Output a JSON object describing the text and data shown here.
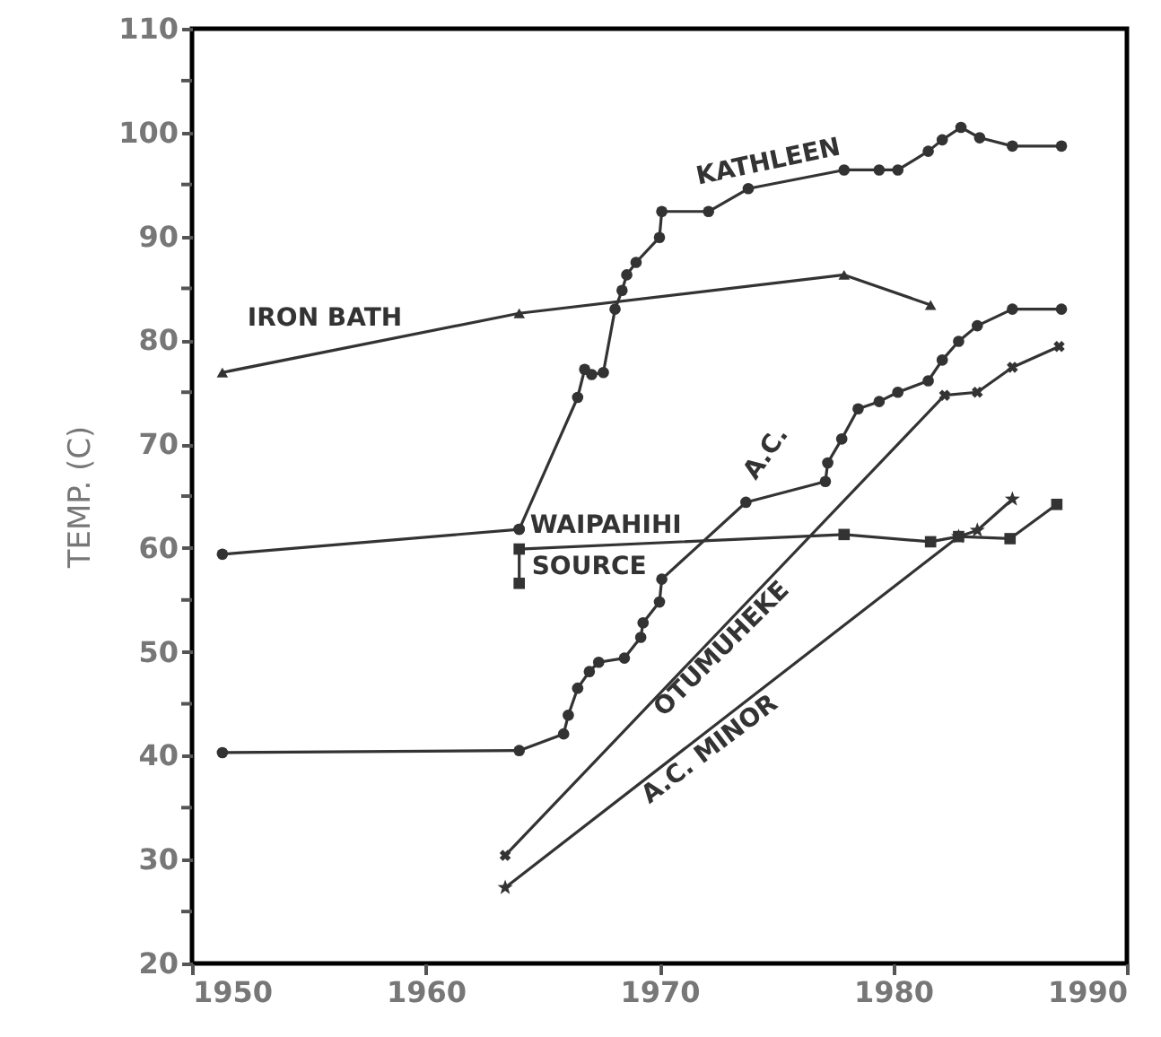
{
  "chart_data": {
    "type": "line",
    "ylabel": "TEMP. (C)",
    "xlim": [
      1950,
      1990
    ],
    "ylim": [
      20,
      110
    ],
    "xticks": [
      1950,
      1960,
      1970,
      1980,
      1990
    ],
    "yticks": [
      20,
      {
        "value": 25,
        "label": null
      },
      30,
      {
        "value": 35,
        "label": null
      },
      40,
      {
        "value": 45,
        "label": null
      },
      50,
      {
        "value": 55,
        "label": null
      },
      60,
      {
        "value": 65,
        "label": null
      },
      70,
      {
        "value": 75,
        "label": null
      },
      80,
      {
        "value": 85,
        "label": null
      },
      90,
      {
        "value": 95,
        "label": null
      },
      100,
      {
        "value": 105,
        "label": null
      },
      110
    ],
    "grid": false,
    "legend": false,
    "line_style": "solid",
    "series": [
      {
        "name": "KATHLEEN",
        "color": "#333333",
        "marker": "circle",
        "x": [
          1964.0,
          1966.5,
          1966.8,
          1967.1,
          1967.6,
          1968.1,
          1968.4,
          1968.6,
          1969.0,
          1970.0,
          1970.1,
          1972.1,
          1973.8,
          1977.9,
          1979.4,
          1980.2,
          1981.5,
          1982.1,
          1982.9,
          1983.7,
          1985.1,
          1987.2
        ],
        "values": [
          61.8,
          74.5,
          77.2,
          76.7,
          76.9,
          83.0,
          84.8,
          86.3,
          87.5,
          89.9,
          92.4,
          92.4,
          94.6,
          96.4,
          96.4,
          96.4,
          98.2,
          99.3,
          100.5,
          99.5,
          98.7,
          98.7
        ]
      },
      {
        "name": "IRON BATH",
        "color": "#333333",
        "marker": "triangle",
        "x": [
          1951.3,
          1964.0,
          1977.9,
          1981.6
        ],
        "values": [
          76.9,
          82.6,
          86.3,
          83.4
        ]
      },
      {
        "name": "WAIPAHIHI",
        "color": "#333333",
        "marker": "circle",
        "x": [
          1951.3,
          1964.0
        ],
        "values": [
          59.4,
          61.8
        ]
      },
      {
        "name": "SOURCE",
        "color": "#333333",
        "marker": "square",
        "x": [
          1964.0,
          1964.0,
          1977.9,
          1981.6,
          1982.8,
          1985.0,
          1987.0
        ],
        "values": [
          56.6,
          59.9,
          61.3,
          60.6,
          61.1,
          60.9,
          64.2
        ]
      },
      {
        "name": "A.C.",
        "color": "#333333",
        "marker": "circle",
        "x": [
          1951.3,
          1964.0,
          1965.9,
          1966.1,
          1966.5,
          1967.0,
          1967.4,
          1968.5,
          1969.2,
          1969.3,
          1970.0,
          1970.1,
          1973.7,
          1977.1,
          1977.2,
          1977.8,
          1978.5,
          1979.4,
          1980.2,
          1981.5,
          1982.1,
          1982.8,
          1983.6,
          1985.1,
          1987.2
        ],
        "values": [
          40.3,
          40.5,
          42.1,
          43.9,
          46.5,
          48.1,
          49.0,
          49.4,
          51.4,
          52.8,
          54.8,
          57.0,
          64.4,
          66.4,
          68.2,
          70.5,
          73.4,
          74.1,
          75.0,
          76.1,
          78.1,
          79.9,
          81.4,
          83.0,
          83.0
        ]
      },
      {
        "name": "OTUMUHEKE",
        "color": "#333333",
        "marker": "cross",
        "x": [
          1963.4,
          1982.2,
          1983.6,
          1985.1,
          1987.1
        ],
        "values": [
          30.4,
          74.7,
          75.0,
          77.4,
          79.4
        ]
      },
      {
        "name": "A.C. MINOR",
        "color": "#333333",
        "marker": "star",
        "x": [
          1963.4,
          1982.8,
          1983.6,
          1985.1
        ],
        "values": [
          27.3,
          61.1,
          61.7,
          64.7
        ]
      }
    ]
  }
}
